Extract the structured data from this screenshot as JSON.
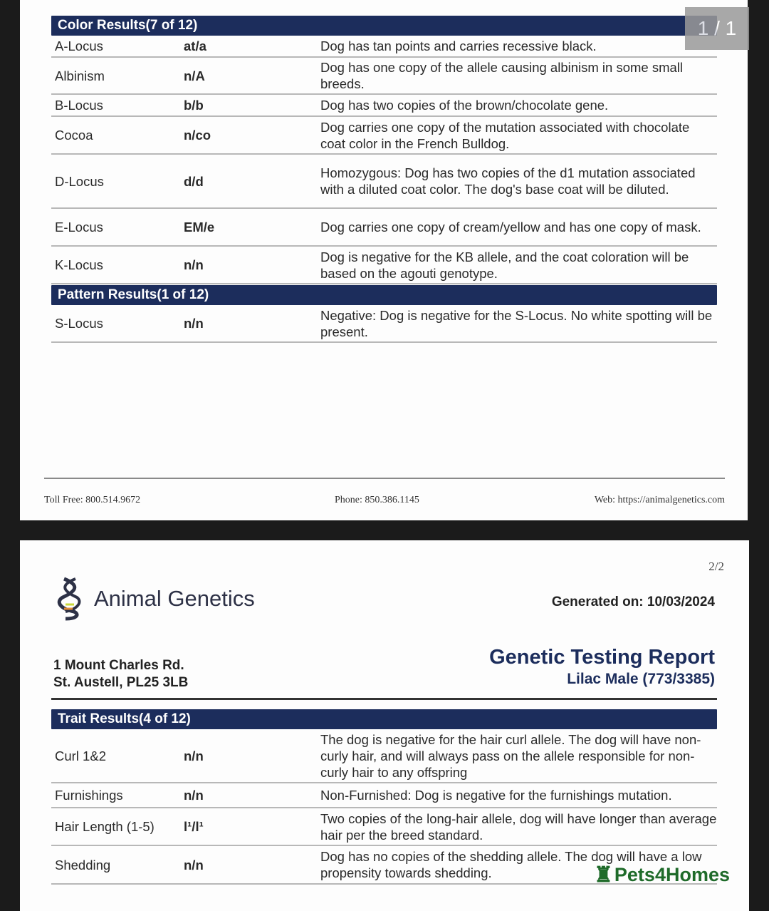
{
  "viewer": {
    "page_indicator": "1 / 1"
  },
  "page1": {
    "color_header": "Color Results(7 of 12)",
    "color_rows": [
      {
        "name": "A-Locus",
        "genotype": "at/a",
        "desc": "Dog has tan points and carries recessive black."
      },
      {
        "name": "Albinism",
        "genotype": "n/A",
        "desc": "Dog has one copy of the allele causing albinism in some small breeds."
      },
      {
        "name": "B-Locus",
        "genotype": "b/b",
        "desc": "Dog has two copies of the brown/chocolate gene."
      },
      {
        "name": "Cocoa",
        "genotype": "n/co",
        "desc": "Dog carries one copy of the mutation associated with chocolate coat color in the French Bulldog."
      },
      {
        "name": "D-Locus",
        "genotype": "d/d",
        "desc": "Homozygous: Dog has two copies of the d1 mutation associated with a diluted coat color. The dog's base coat will be diluted."
      },
      {
        "name": "E-Locus",
        "genotype": "EM/e",
        "desc": "Dog carries one copy of cream/yellow and has one copy of mask."
      },
      {
        "name": "K-Locus",
        "genotype": "n/n",
        "desc": "Dog is negative for the KB allele, and the coat coloration will be based on the agouti genotype."
      }
    ],
    "pattern_header": "Pattern Results(1 of 12)",
    "pattern_rows": [
      {
        "name": "S-Locus",
        "genotype": "n/n",
        "desc": "Negative: Dog is negative for the S-Locus. No white spotting will be present."
      }
    ],
    "footer": {
      "toll_free": "Toll Free: 800.514.9672",
      "phone": "Phone: 850.386.1145",
      "web": "Web: https://animalgenetics.com"
    }
  },
  "page2": {
    "page_number": "2/2",
    "brand": "Animal Genetics",
    "generated": "Generated on: 10/03/2024",
    "address_line1": "1 Mount Charles Rd.",
    "address_line2": "St. Austell, PL25 3LB",
    "report_title": "Genetic Testing Report",
    "report_subtitle": "Lilac Male (773/3385)",
    "trait_header": "Trait Results(4 of 12)",
    "trait_rows": [
      {
        "name": "Curl 1&2",
        "genotype": "n/n",
        "desc": "The dog is negative for the hair curl allele. The dog will have non-curly hair, and will always pass on the allele responsible for non-curly hair to any offspring"
      },
      {
        "name": "Furnishings",
        "genotype": "n/n",
        "desc": "Non-Furnished: Dog is negative for the furnishings mutation."
      },
      {
        "name": "Hair Length (1-5)",
        "genotype": "l¹/l¹",
        "desc": "Two copies of the long-hair allele, dog will have longer than average hair per the breed standard."
      },
      {
        "name": "Shedding",
        "genotype": "n/n",
        "desc": "Dog has no copies of the shedding allele. The dog will have a low propensity towards shedding."
      }
    ]
  },
  "watermark": {
    "text": "Pets4Homes",
    "color": "#1f6b2a"
  },
  "colors": {
    "header_navy": "#1c2d5c"
  }
}
